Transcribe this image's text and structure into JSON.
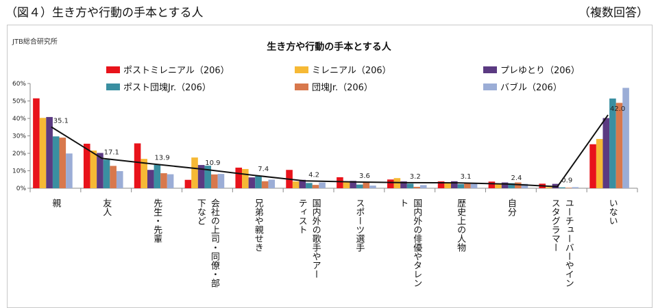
{
  "figure": {
    "title": "（図４）生き方や行動の手本とする人",
    "note": "（複数回答）",
    "source": "JTB総合研究所"
  },
  "chart_data": {
    "type": "bar",
    "title": "生き方や行動の手本とする人",
    "ylim": [
      0,
      60
    ],
    "yticks": [
      "0%",
      "10%",
      "20%",
      "30%",
      "40%",
      "50%",
      "60%"
    ],
    "categories": [
      [
        "親"
      ],
      [
        "友人"
      ],
      [
        "先生・先輩"
      ],
      [
        "会社の上司・同僚・部",
        "下など"
      ],
      [
        "兄弟や親せき"
      ],
      [
        "国内外の歌手やアー",
        "ティスト"
      ],
      [
        "スポーツ選手"
      ],
      [
        "国内外の俳優やタレン",
        "ト"
      ],
      [
        "歴史上の人物"
      ],
      [
        "自分"
      ],
      [
        "ユーチューバーやイン",
        "スタグラマー"
      ],
      [
        "いない"
      ]
    ],
    "series": [
      {
        "name": "ポストミレニアル（206）",
        "color": "#e8131b",
        "values": [
          51.5,
          25.5,
          25.7,
          4.8,
          11.8,
          10.5,
          6.3,
          5.0,
          3.9,
          3.8,
          2.6,
          25.2
        ]
      },
      {
        "name": "ミレニアル（206）",
        "color": "#f6b935",
        "values": [
          40.3,
          21.6,
          16.8,
          17.6,
          11.0,
          3.9,
          3.9,
          5.8,
          3.4,
          2.4,
          0.6,
          28.2
        ]
      },
      {
        "name": "プレゆとり（206）",
        "color": "#5b3a82",
        "values": [
          40.8,
          20.2,
          10.5,
          13.3,
          6.2,
          4.8,
          4.2,
          3.9,
          4.0,
          3.3,
          2.5,
          40.2
        ]
      },
      {
        "name": "ポスト団塊Jr.（206）",
        "color": "#3a8fa1",
        "values": [
          29.7,
          16.4,
          13.4,
          12.9,
          6.9,
          3.0,
          2.1,
          2.6,
          2.3,
          2.9,
          0.5,
          51.4
        ]
      },
      {
        "name": "団塊Jr.（206）",
        "color": "#d8784c",
        "values": [
          29.0,
          12.8,
          8.6,
          7.9,
          4.0,
          1.9,
          3.6,
          0.8,
          3.0,
          3.3,
          0.3,
          48.9
        ]
      },
      {
        "name": "バブル（206）",
        "color": "#9badd6",
        "values": [
          19.9,
          9.8,
          8.0,
          8.2,
          4.9,
          3.3,
          1.5,
          1.8,
          2.9,
          2.5,
          0.6,
          57.5
        ]
      }
    ],
    "total_line": {
      "values": [
        35.1,
        17.1,
        13.9,
        10.9,
        7.4,
        4.2,
        3.6,
        3.2,
        3.1,
        2.4,
        0.9,
        42.0
      ],
      "labels": [
        "35.1",
        "17.1",
        "13.9",
        "10.9",
        "7.4",
        "4.2",
        "3.6",
        "3.2",
        "3.1",
        "2.4",
        "0.9",
        "42.0"
      ],
      "color": "#111111"
    }
  }
}
